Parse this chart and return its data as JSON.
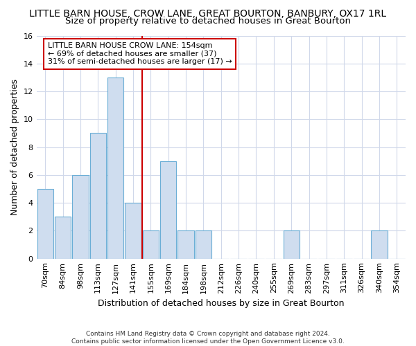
{
  "title1": "LITTLE BARN HOUSE, CROW LANE, GREAT BOURTON, BANBURY, OX17 1RL",
  "title2": "Size of property relative to detached houses in Great Bourton",
  "xlabel": "Distribution of detached houses by size in Great Bourton",
  "ylabel": "Number of detached properties",
  "bins": [
    "70sqm",
    "84sqm",
    "98sqm",
    "113sqm",
    "127sqm",
    "141sqm",
    "155sqm",
    "169sqm",
    "184sqm",
    "198sqm",
    "212sqm",
    "226sqm",
    "240sqm",
    "255sqm",
    "269sqm",
    "283sqm",
    "297sqm",
    "311sqm",
    "326sqm",
    "340sqm",
    "354sqm"
  ],
  "counts": [
    5,
    3,
    6,
    9,
    13,
    4,
    2,
    7,
    2,
    2,
    0,
    0,
    0,
    0,
    2,
    0,
    0,
    0,
    0,
    2,
    0
  ],
  "bar_color": "#cfddef",
  "bar_edge_color": "#6baed6",
  "vline_x_index": 6,
  "vline_color": "#cc0000",
  "annotation_line1": "LITTLE BARN HOUSE CROW LANE: 154sqm",
  "annotation_line2": "← 69% of detached houses are smaller (37)",
  "annotation_line3": "31% of semi-detached houses are larger (17) →",
  "annotation_box_color": "#ffffff",
  "annotation_box_edge": "#cc0000",
  "ylim": [
    0,
    16
  ],
  "yticks": [
    0,
    2,
    4,
    6,
    8,
    10,
    12,
    14,
    16
  ],
  "grid_color": "#d0d8ea",
  "footer": "Contains HM Land Registry data © Crown copyright and database right 2024.\nContains public sector information licensed under the Open Government Licence v3.0.",
  "background_color": "#ffffff",
  "title1_fontsize": 10,
  "title2_fontsize": 9.5,
  "ylabel_fontsize": 9,
  "xlabel_fontsize": 9,
  "tick_fontsize": 8,
  "annotation_fontsize": 8,
  "footer_fontsize": 6.5
}
